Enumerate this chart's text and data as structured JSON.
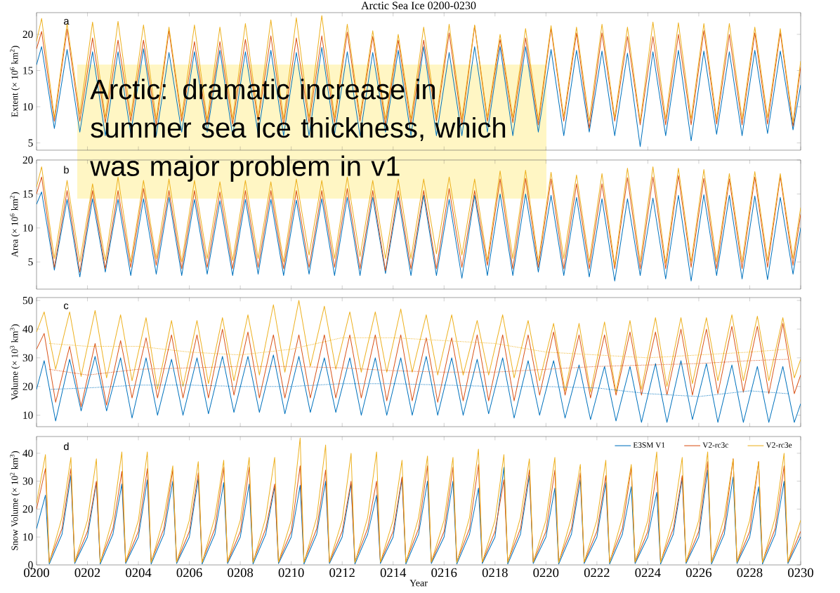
{
  "chart_data": [
    {
      "type": "line",
      "title": "Arctic Sea Ice 0200-0230",
      "ylabel": "Extent (× 10$^{6}$ km$^{2}$)",
      "annotations": [
        "a",
        "Arctic: dramatic increase in summer sea ice thickness, which was major problem in v1"
      ],
      "tick_labels": "y",
      "xlim": [
        200,
        230
      ],
      "ylim": [
        4,
        23
      ],
      "yticks": [
        5,
        10,
        15,
        20
      ],
      "xticks": [
        200,
        202,
        204,
        206,
        208,
        210,
        212,
        214,
        216,
        218,
        220,
        222,
        224,
        226,
        228,
        230
      ],
      "x": [
        200,
        200.2,
        200.7,
        201.2,
        201.7,
        202.2,
        202.7,
        203.2,
        203.7,
        204.2,
        204.7,
        205.2,
        205.7,
        206.2,
        206.7,
        207.2,
        207.7,
        208.2,
        208.7,
        209.2,
        209.7,
        210.2,
        210.7,
        211.2,
        211.7,
        212.2,
        212.7,
        213.2,
        213.7,
        214.2,
        214.7,
        215.2,
        215.7,
        216.2,
        216.7,
        217.2,
        217.7,
        218.2,
        218.7,
        219.2,
        219.7,
        220.2,
        220.7,
        221.2,
        221.7,
        222.2,
        222.7,
        223.2,
        223.7,
        224.2,
        224.7,
        225.2,
        225.7,
        226.2,
        226.7,
        227.2,
        227.7,
        228.2,
        228.7,
        229.2,
        229.7,
        230
      ],
      "series": [
        {
          "color": "#0072bd",
          "values": [
            15.8,
            18.3,
            7,
            17.9,
            6.5,
            17.6,
            6,
            17.6,
            6.3,
            18.0,
            6,
            17.5,
            6.5,
            17.6,
            6.5,
            17.8,
            6,
            17.6,
            6.2,
            17.8,
            6,
            17.5,
            6,
            18.2,
            6.2,
            17.6,
            6,
            17.5,
            6.5,
            17.8,
            6,
            18.3,
            6,
            17.5,
            6,
            18.3,
            6.5,
            18.3,
            6,
            18.3,
            6.5,
            17.9,
            6,
            17.8,
            6.5,
            17.7,
            6,
            17.4,
            4.5,
            17.6,
            6,
            17.8,
            5.3,
            17.7,
            6.2,
            17.6,
            6,
            17.8,
            6.3,
            17.7,
            6.8,
            13
          ]
        },
        {
          "color": "#d95319",
          "values": [
            18,
            20.4,
            8,
            20.7,
            8,
            19.5,
            7.8,
            19.2,
            8,
            19.2,
            7.5,
            20.5,
            8,
            19.0,
            7.5,
            19.0,
            7.6,
            19.3,
            8,
            19.8,
            7.5,
            19.5,
            7.8,
            19.8,
            7.8,
            20.3,
            8,
            19.7,
            7.5,
            19.2,
            7.6,
            19.2,
            8,
            20.2,
            7.5,
            21.2,
            8,
            19.3,
            7.8,
            19.5,
            7.5,
            20.8,
            8,
            20.2,
            7,
            20.2,
            8,
            19.7,
            7.5,
            19.7,
            7.5,
            20.0,
            7.5,
            20.5,
            7.6,
            20.0,
            7.5,
            20.2,
            7.6,
            20.3,
            7.3,
            15.5
          ]
        },
        {
          "color": "#edb120",
          "values": [
            19,
            22.2,
            8.5,
            21.5,
            9,
            21.7,
            8.5,
            21.8,
            8.7,
            21.3,
            8.3,
            21.0,
            8.6,
            21.3,
            8.2,
            21.0,
            8.3,
            21.5,
            8.6,
            22.0,
            8.3,
            22.3,
            8.5,
            22.6,
            8.5,
            21.4,
            8.7,
            20.5,
            8.3,
            20.0,
            8.3,
            21.0,
            8.5,
            21.4,
            8.3,
            21.3,
            8.5,
            20.0,
            8.5,
            20.8,
            8.2,
            21.2,
            8.6,
            21.0,
            8,
            21.4,
            8.5,
            21.0,
            8,
            21.7,
            8.3,
            21.6,
            8.3,
            21.5,
            8.2,
            21.5,
            8.3,
            21.0,
            8.5,
            20.8,
            7.8,
            16.3
          ]
        }
      ]
    },
    {
      "type": "line",
      "ylabel": "Area (× 10$^{6}$ km$^{2}$)",
      "annotations": [
        "b"
      ],
      "tick_labels": "y",
      "xlim": [
        200,
        230
      ],
      "ylim": [
        1,
        20
      ],
      "yticks": [
        5,
        10,
        15,
        20
      ],
      "xticks": [
        200,
        202,
        204,
        206,
        208,
        210,
        212,
        214,
        216,
        218,
        220,
        222,
        224,
        226,
        228,
        230
      ],
      "x": [
        200,
        200.2,
        200.7,
        201.2,
        201.7,
        202.2,
        202.7,
        203.2,
        203.7,
        204.2,
        204.7,
        205.2,
        205.7,
        206.2,
        206.7,
        207.2,
        207.7,
        208.2,
        208.7,
        209.2,
        209.7,
        210.2,
        210.7,
        211.2,
        211.7,
        212.2,
        212.7,
        213.2,
        213.7,
        214.2,
        214.7,
        215.2,
        215.7,
        216.2,
        216.7,
        217.2,
        217.7,
        218.2,
        218.7,
        219.2,
        219.7,
        220.2,
        220.7,
        221.2,
        221.7,
        222.2,
        222.7,
        223.2,
        223.7,
        224.2,
        224.7,
        225.2,
        225.7,
        226.2,
        226.7,
        227.2,
        227.7,
        228.2,
        228.7,
        229.2,
        229.7,
        230
      ],
      "series": [
        {
          "color": "#0072bd",
          "values": [
            13.5,
            15.3,
            3.8,
            14.2,
            2.8,
            14.3,
            3.5,
            14.2,
            3,
            14.3,
            3.2,
            14.5,
            3,
            14.2,
            3.2,
            14.0,
            3,
            14.2,
            3.2,
            14.2,
            3,
            14.1,
            3.2,
            14.3,
            3,
            14.5,
            3,
            14.5,
            3.3,
            14.5,
            3,
            14.8,
            3,
            14.2,
            2.6,
            14.8,
            3,
            15.0,
            3,
            15.0,
            3.5,
            14.8,
            3,
            14.5,
            2.8,
            14.3,
            2.2,
            14.3,
            3,
            14.4,
            2.5,
            14.8,
            2.2,
            14.9,
            3,
            14.8,
            2.5,
            14.7,
            2.4,
            14.5,
            3.2,
            10
          ]
        },
        {
          "color": "#d95319",
          "values": [
            15,
            17.5,
            4.2,
            15.5,
            3.5,
            15.5,
            4,
            15.5,
            4.2,
            15.8,
            4.5,
            15.5,
            4,
            15.5,
            4.2,
            15.3,
            4,
            15.5,
            4.2,
            15.5,
            4,
            15.5,
            4.2,
            15.5,
            4.2,
            15.8,
            4,
            15.5,
            3.7,
            15.5,
            4,
            15.5,
            4,
            15.8,
            4.2,
            15.5,
            4.5,
            17.2,
            4,
            17.3,
            4.2,
            17.2,
            4,
            16.5,
            4,
            16.5,
            4,
            17.4,
            4,
            17.5,
            4,
            17.7,
            4.2,
            17.3,
            4,
            17.2,
            4,
            17.5,
            4.2,
            17.6,
            4.5,
            12
          ]
        },
        {
          "color": "#edb120",
          "values": [
            16,
            19.0,
            5.5,
            17.0,
            5,
            16.5,
            5.2,
            17.5,
            5,
            17.0,
            5.5,
            17.2,
            5,
            17.0,
            5.5,
            16.8,
            5.2,
            17.0,
            5.5,
            16.8,
            5,
            17.2,
            6,
            17.0,
            5.5,
            17.5,
            5.8,
            17.0,
            5.5,
            17.2,
            5.5,
            17.2,
            6.2,
            17.5,
            6,
            17.2,
            5.2,
            18.4,
            5.5,
            18.5,
            5,
            18.2,
            5.5,
            17.8,
            5,
            18.0,
            4.5,
            18.8,
            5,
            19.0,
            4.8,
            18.8,
            5,
            18.6,
            5,
            18.0,
            5,
            18.3,
            5.2,
            18.0,
            5.5,
            13
          ]
        }
      ]
    },
    {
      "type": "line",
      "ylabel": "Volume (× 10$^{3}$ km$^{3}$)",
      "annotations": [
        "c"
      ],
      "tick_labels": "y",
      "xlim": [
        200,
        230
      ],
      "ylim": [
        6,
        51
      ],
      "yticks": [
        10,
        20,
        30,
        40,
        50
      ],
      "xticks": [
        200,
        202,
        204,
        206,
        208,
        210,
        212,
        214,
        216,
        218,
        220,
        222,
        224,
        226,
        228,
        230
      ],
      "x": [
        200,
        200.3,
        200.75,
        201.3,
        201.75,
        202.3,
        202.75,
        203.3,
        203.75,
        204.3,
        204.75,
        205.3,
        205.75,
        206.3,
        206.75,
        207.3,
        207.75,
        208.3,
        208.75,
        209.3,
        209.75,
        210.3,
        210.75,
        211.3,
        211.75,
        212.3,
        212.75,
        213.3,
        213.75,
        214.3,
        214.75,
        215.3,
        215.75,
        216.3,
        216.75,
        217.3,
        217.75,
        218.3,
        218.75,
        219.3,
        219.75,
        220.3,
        220.75,
        221.3,
        221.75,
        222.3,
        222.75,
        223.3,
        223.75,
        224.3,
        224.75,
        225.3,
        225.75,
        226.3,
        226.75,
        227.3,
        227.75,
        228.3,
        228.75,
        229.3,
        229.75,
        230
      ],
      "series": [
        {
          "color": "#0072bd",
          "values": [
            19,
            29,
            8,
            29.5,
            11.5,
            30.5,
            11.5,
            30,
            9,
            30,
            10,
            29.5,
            10,
            30,
            10.5,
            30.5,
            11,
            30.5,
            11,
            31,
            10.5,
            30.5,
            11,
            30,
            11,
            30,
            10,
            30,
            10,
            30,
            10,
            30.5,
            10,
            30,
            10,
            29.5,
            10.5,
            30,
            9,
            29,
            10,
            29,
            9,
            27.5,
            8.5,
            27,
            8,
            27,
            7.5,
            28,
            7.5,
            29,
            8.5,
            28,
            7.5,
            27.5,
            7.5,
            27,
            7.5,
            27,
            7.5,
            14
          ]
        },
        {
          "color": "#d95319",
          "values": [
            33,
            38.5,
            14.5,
            34,
            13,
            35,
            13.5,
            36,
            16,
            37,
            16,
            38,
            16,
            38,
            16,
            40,
            17,
            39,
            16,
            38,
            16,
            38,
            16,
            38,
            16,
            38,
            16,
            38,
            15,
            38,
            15,
            37,
            14.5,
            37,
            15,
            38,
            15,
            38,
            15,
            38,
            17,
            39,
            17,
            38,
            16,
            38,
            17,
            39,
            17,
            39,
            17,
            40,
            17,
            40,
            17.5,
            41,
            18,
            41,
            17.5,
            42,
            17.5,
            24
          ]
        },
        {
          "color": "#edb120",
          "values": [
            39,
            46,
            26,
            46,
            23.5,
            46.5,
            23,
            45,
            22,
            44,
            19,
            43,
            20,
            43,
            21,
            44,
            22,
            45,
            24,
            48.5,
            25,
            50,
            27,
            48,
            26,
            46,
            25,
            46,
            25,
            47,
            25,
            45,
            24,
            45,
            24,
            43,
            24,
            45,
            23,
            43,
            22,
            42,
            18.5,
            42,
            18,
            42.5,
            18,
            43,
            19,
            44,
            20,
            44,
            21,
            44,
            22,
            45,
            22,
            44.5,
            22,
            44,
            23,
            29.5
          ]
        },
        {
          "color": "#0072bd",
          "line_style": "dotted",
          "x": [
            200.5,
            202,
            204,
            206,
            208,
            210,
            212,
            214,
            216,
            218,
            220,
            222,
            224,
            226,
            228,
            229.5
          ],
          "values": [
            19,
            19.5,
            20.5,
            20.5,
            20,
            20,
            21,
            21,
            20.5,
            20,
            20,
            19.5,
            17.5,
            16.5,
            18.5,
            17.5
          ]
        },
        {
          "color": "#d95319",
          "line_style": "dotted",
          "x": [
            200.5,
            202,
            204,
            206,
            208,
            210,
            212,
            214,
            216,
            218,
            220,
            222,
            224,
            226,
            228,
            229.5
          ],
          "values": [
            26,
            24,
            26,
            26.5,
            27,
            27,
            26.5,
            25.5,
            25,
            25,
            26,
            27,
            27.5,
            28,
            29,
            29.5
          ]
        },
        {
          "color": "#edb120",
          "line_style": "dotted",
          "x": [
            200.5,
            202,
            204,
            206,
            208,
            210,
            212,
            214,
            216,
            218,
            220,
            222,
            224,
            226,
            228,
            229.5
          ],
          "values": [
            35,
            34,
            34,
            32,
            31,
            33,
            37,
            37,
            36,
            35,
            32,
            31,
            30,
            31,
            32,
            33
          ]
        }
      ]
    },
    {
      "type": "line",
      "ylabel": "Snow Volume (× 10$^{2}$ km$^{3}$)",
      "xlabel": "Year",
      "annotations": [
        "d"
      ],
      "legend": "top right",
      "xlim": [
        200,
        230
      ],
      "ylim": [
        0,
        46
      ],
      "yticks": [
        0,
        10,
        20,
        30,
        40
      ],
      "xticks": [
        {
          "value": 200,
          "label": "0200"
        },
        {
          "value": 202,
          "label": "0202"
        },
        {
          "value": 204,
          "label": "0204"
        },
        {
          "value": 206,
          "label": "0206"
        },
        {
          "value": 208,
          "label": "0208"
        },
        {
          "value": 210,
          "label": "0210"
        },
        {
          "value": 212,
          "label": "0212"
        },
        {
          "value": 214,
          "label": "0214"
        },
        {
          "value": 216,
          "label": "0216"
        },
        {
          "value": 218,
          "label": "0218"
        },
        {
          "value": 220,
          "label": "0220"
        },
        {
          "value": 222,
          "label": "0222"
        },
        {
          "value": 224,
          "label": "0224"
        },
        {
          "value": 226,
          "label": "0226"
        },
        {
          "value": 228,
          "label": "0228"
        },
        {
          "value": 230,
          "label": "0230"
        }
      ],
      "x": [
        200,
        200.35,
        200.5,
        201,
        201.35,
        201.5,
        202,
        202.35,
        202.5,
        203,
        203.35,
        203.5,
        204,
        204.35,
        204.5,
        205,
        205.35,
        205.5,
        206,
        206.35,
        206.5,
        207,
        207.35,
        207.5,
        208,
        208.35,
        208.5,
        209,
        209.35,
        209.5,
        210,
        210.35,
        210.5,
        211,
        211.35,
        211.5,
        212,
        212.35,
        212.5,
        213,
        213.35,
        213.5,
        214,
        214.35,
        214.5,
        215,
        215.35,
        215.5,
        216,
        216.35,
        216.5,
        217,
        217.35,
        217.5,
        218,
        218.35,
        218.5,
        219,
        219.35,
        219.5,
        220,
        220.35,
        220.5,
        221,
        221.35,
        221.5,
        222,
        222.35,
        222.5,
        223,
        223.35,
        223.5,
        224,
        224.35,
        224.5,
        225,
        225.35,
        225.5,
        226,
        226.35,
        226.5,
        227,
        227.35,
        227.5,
        228,
        228.35,
        228.5,
        229,
        229.35,
        229.5,
        230
      ],
      "series": [
        {
          "name": "E3SM V1",
          "color": "#0072bd",
          "values": [
            13,
            25,
            0.3,
            11,
            32,
            0.5,
            10,
            29.5,
            0.3,
            11,
            29,
            0.5,
            10,
            30.5,
            0.3,
            11,
            30,
            0.5,
            10,
            31,
            0.3,
            11,
            29.5,
            0.5,
            10,
            29,
            0.3,
            11,
            28,
            0.5,
            10,
            28.5,
            0.3,
            11,
            30,
            0.5,
            10,
            29,
            0.3,
            11,
            25,
            0.5,
            10,
            31,
            0.3,
            11,
            30,
            0.5,
            10,
            30,
            0.3,
            11,
            27.5,
            0.5,
            10,
            35,
            0.3,
            11,
            32,
            0.5,
            10,
            27.5,
            0.3,
            11,
            30.5,
            0.5,
            10,
            29.5,
            0.3,
            11,
            28,
            0.5,
            10,
            26,
            0.3,
            11,
            31,
            0.5,
            10,
            34,
            0.3,
            11,
            31.5,
            0.5,
            10,
            28,
            0.3,
            11,
            30,
            0.5,
            10
          ]
        },
        {
          "name": "V2-rc3c",
          "color": "#d95319",
          "values": [
            20,
            34.5,
            1.2,
            13,
            34.5,
            1,
            12,
            30,
            1.2,
            13,
            33.5,
            1,
            12,
            34.5,
            1.2,
            13,
            34,
            1,
            12,
            33,
            1.2,
            13,
            35,
            1,
            12,
            35,
            1.2,
            13,
            29,
            1,
            12,
            35.5,
            1.2,
            13,
            34,
            1,
            12,
            30,
            1.2,
            13,
            30,
            1,
            12,
            31.5,
            1.2,
            13,
            35.5,
            1,
            12,
            35,
            1.2,
            13,
            36,
            1,
            12,
            30.5,
            1.2,
            13,
            34,
            1,
            12,
            34,
            1.2,
            13,
            33,
            1,
            12,
            32,
            1.2,
            13,
            35,
            1,
            12,
            33.5,
            1.2,
            13,
            32,
            1,
            12,
            37,
            1.2,
            13,
            38,
            1,
            12,
            37,
            1.2,
            13,
            35.5,
            1,
            12
          ]
        },
        {
          "name": "V2-rc3e",
          "color": "#edb120",
          "values": [
            22,
            39.5,
            0.8,
            17,
            38.5,
            1,
            16,
            38,
            0.8,
            17,
            40.5,
            1,
            16,
            40.5,
            0.8,
            17,
            35.5,
            1,
            16,
            37,
            0.8,
            17,
            37.5,
            1,
            16,
            38.5,
            0.8,
            17,
            38.5,
            1,
            16,
            45.5,
            0.8,
            17,
            43,
            1,
            16,
            40,
            0.8,
            17,
            40.5,
            1,
            16,
            37.5,
            0.8,
            17,
            39,
            1,
            16,
            38.5,
            0.8,
            17,
            41.5,
            1,
            16,
            39.5,
            0.8,
            17,
            38,
            1,
            16,
            38.5,
            0.8,
            17,
            36,
            1,
            16,
            37.5,
            0.8,
            17,
            36,
            1,
            16,
            40.5,
            0.8,
            17,
            38.5,
            1,
            16,
            40.5,
            0.8,
            17,
            38,
            1,
            16,
            37,
            0.8,
            17,
            40,
            1,
            16
          ]
        }
      ]
    }
  ]
}
